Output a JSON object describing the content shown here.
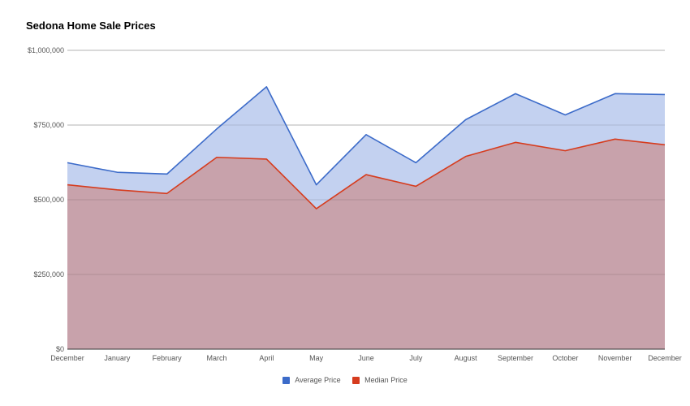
{
  "chart_data": {
    "type": "area",
    "title": "Sedona Home Sale Prices",
    "xlabel": "",
    "ylabel": "",
    "categories": [
      "December",
      "January",
      "February",
      "March",
      "April",
      "May",
      "June",
      "July",
      "August",
      "September",
      "October",
      "November",
      "December"
    ],
    "ylim": [
      0,
      1000000
    ],
    "y_ticks": [
      "$0",
      "$250,000",
      "$500,000",
      "$750,000",
      "$1,000,000"
    ],
    "y_tick_values": [
      0,
      250000,
      500000,
      750000,
      1000000
    ],
    "grid": true,
    "legend_position": "bottom",
    "series": [
      {
        "name": "Average Price",
        "color": "#3c6bc9",
        "fill": "#c3d1f0",
        "values": [
          624000,
          592000,
          586000,
          737000,
          878000,
          550000,
          718000,
          624000,
          768000,
          855000,
          784000,
          855000,
          852000
        ]
      },
      {
        "name": "Median Price",
        "color": "#d63c1e",
        "fill": "#c8a2ab",
        "values": [
          550000,
          533000,
          521000,
          642000,
          636000,
          470000,
          584000,
          545000,
          645000,
          692000,
          664000,
          703000,
          684000
        ]
      }
    ]
  }
}
